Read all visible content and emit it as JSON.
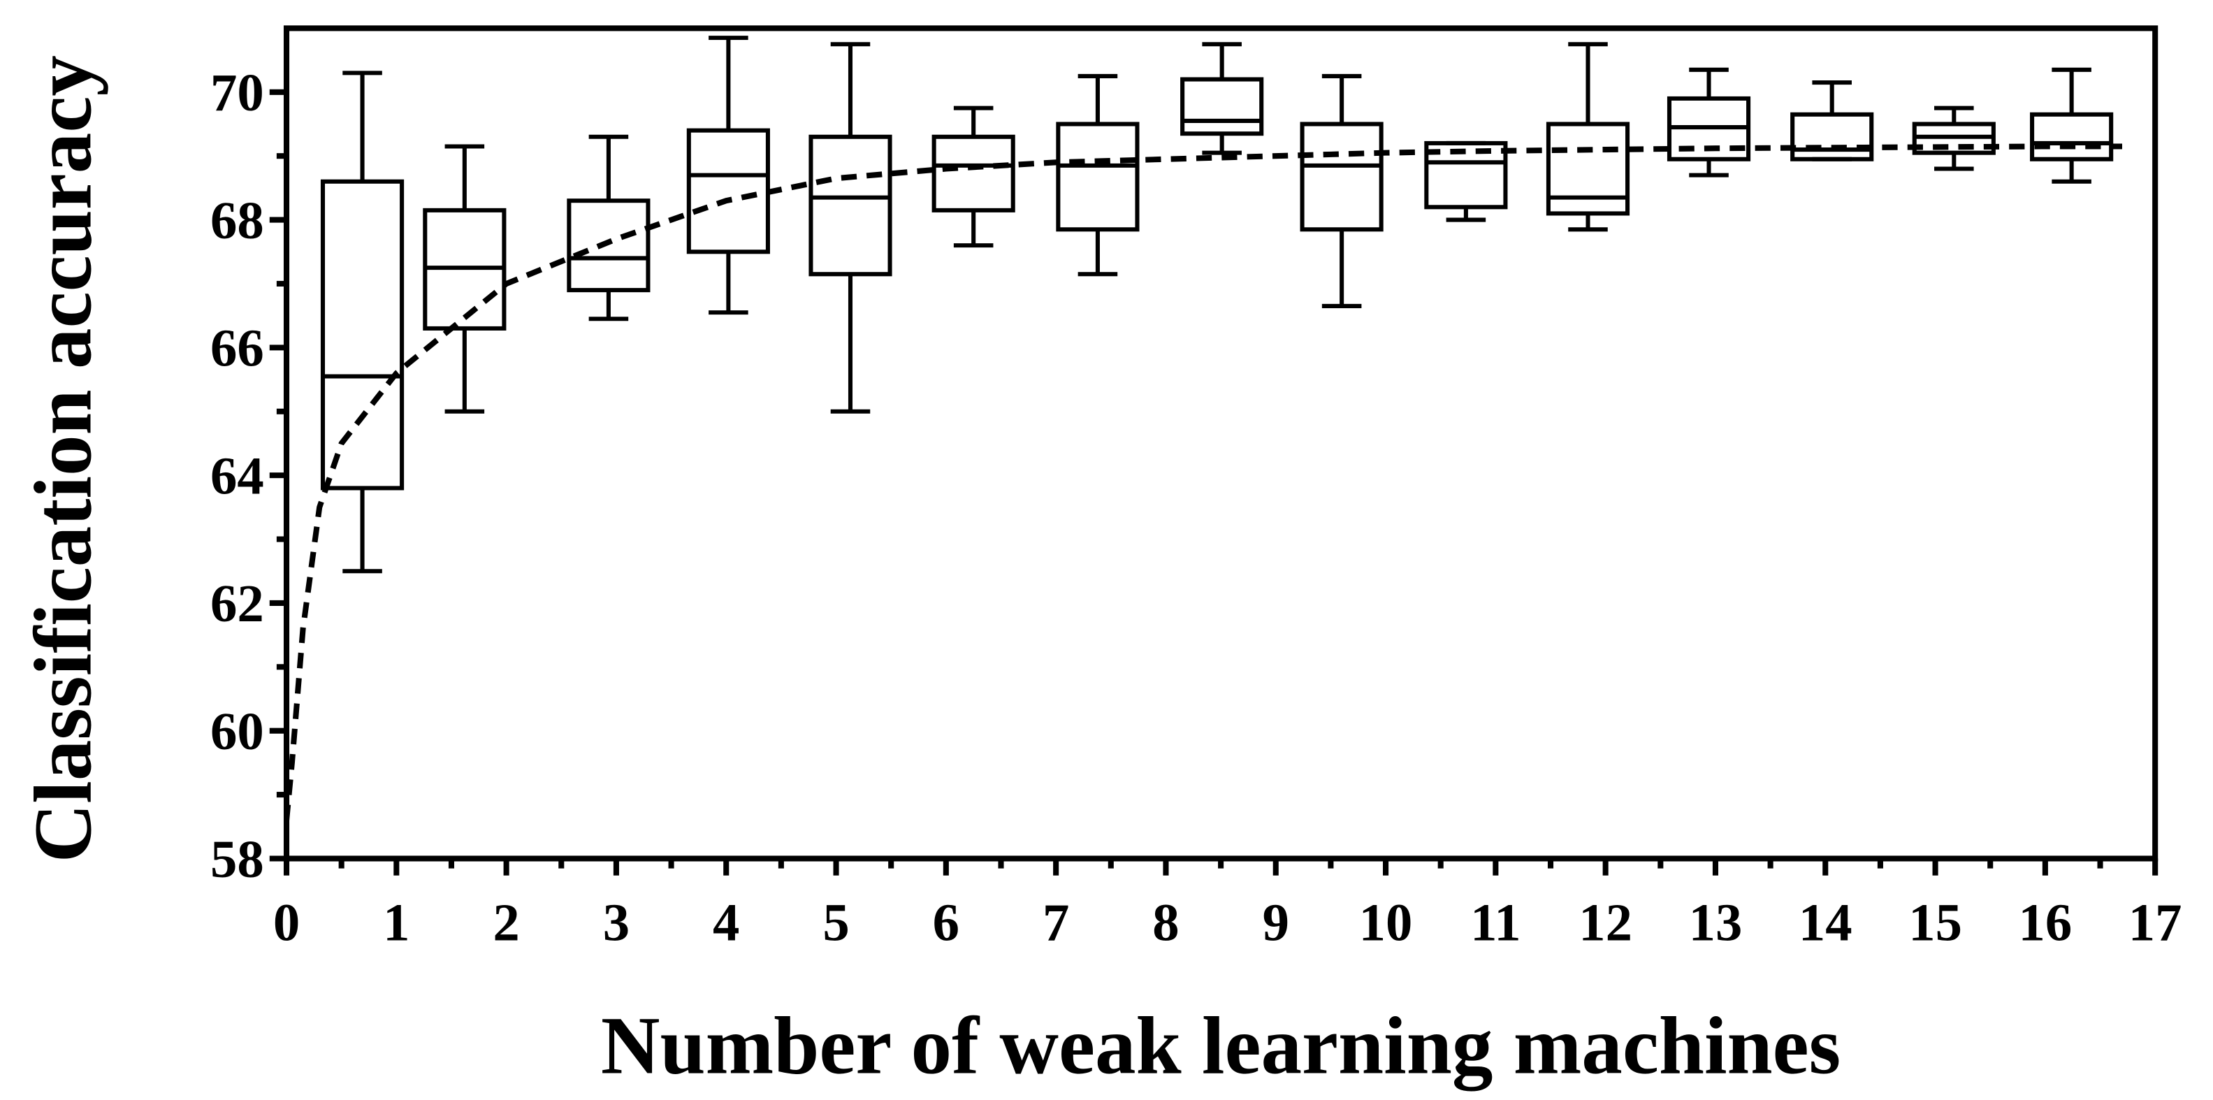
{
  "chart_data": {
    "type": "box",
    "xlabel": "Number of weak learning machines",
    "ylabel": "Classification accuracy",
    "xlim": [
      0,
      17
    ],
    "ylim": [
      58,
      71
    ],
    "xticks": [
      0,
      1,
      2,
      3,
      4,
      5,
      6,
      7,
      8,
      9,
      10,
      11,
      12,
      13,
      14,
      15,
      16,
      17
    ],
    "xminorticks": [
      0.5,
      1.5,
      2.5,
      3.5,
      4.5,
      5.5,
      6.5,
      7.5,
      8.5,
      9.5,
      10.5,
      11.5,
      12.5,
      13.5,
      14.5,
      15.5,
      16.5
    ],
    "yticks": [
      58,
      60,
      62,
      64,
      66,
      68,
      70
    ],
    "yminorticks": [
      59,
      61,
      63,
      65,
      67,
      69
    ],
    "color": "#000000",
    "boxes": [
      {
        "x": 0.69,
        "min": 62.5,
        "q1": 63.8,
        "median": 65.55,
        "q3": 68.6,
        "max": 70.3
      },
      {
        "x": 1.62,
        "min": 65.0,
        "q1": 66.3,
        "median": 67.25,
        "q3": 68.15,
        "max": 69.15
      },
      {
        "x": 2.93,
        "min": 66.45,
        "q1": 66.9,
        "median": 67.4,
        "q3": 68.3,
        "max": 69.3
      },
      {
        "x": 4.02,
        "min": 66.55,
        "q1": 67.5,
        "median": 68.7,
        "q3": 69.4,
        "max": 70.85
      },
      {
        "x": 5.13,
        "min": 65.0,
        "q1": 67.15,
        "median": 68.35,
        "q3": 69.3,
        "max": 70.75
      },
      {
        "x": 6.25,
        "min": 67.6,
        "q1": 68.15,
        "median": 68.85,
        "q3": 69.3,
        "max": 69.75
      },
      {
        "x": 7.38,
        "min": 67.15,
        "q1": 67.85,
        "median": 68.85,
        "q3": 69.5,
        "max": 70.25
      },
      {
        "x": 8.51,
        "min": 69.05,
        "q1": 69.35,
        "median": 69.55,
        "q3": 70.2,
        "max": 70.75
      },
      {
        "x": 9.6,
        "min": 66.65,
        "q1": 67.85,
        "median": 68.85,
        "q3": 69.5,
        "max": 70.25
      },
      {
        "x": 10.73,
        "min": 68.0,
        "q1": 68.2,
        "median": 68.9,
        "q3": 69.2,
        "max": 69.2
      },
      {
        "x": 11.84,
        "min": 67.85,
        "q1": 68.1,
        "median": 68.35,
        "q3": 69.5,
        "max": 70.75
      },
      {
        "x": 12.94,
        "min": 68.7,
        "q1": 68.95,
        "median": 69.45,
        "q3": 69.9,
        "max": 70.35
      },
      {
        "x": 14.06,
        "min": 68.95,
        "q1": 68.95,
        "median": 69.1,
        "q3": 69.65,
        "max": 70.15
      },
      {
        "x": 15.17,
        "min": 68.8,
        "q1": 69.05,
        "median": 69.3,
        "q3": 69.5,
        "max": 69.75
      },
      {
        "x": 16.24,
        "min": 68.6,
        "q1": 68.95,
        "median": 69.2,
        "q3": 69.65,
        "max": 70.35
      }
    ],
    "trend": {
      "x": [
        0,
        0.05,
        0.15,
        0.3,
        0.5,
        1,
        1.5,
        2,
        3,
        4,
        5,
        6,
        7,
        8,
        9,
        10,
        11,
        12,
        13,
        14,
        15,
        16,
        16.7
      ],
      "values": [
        58.6,
        59.5,
        61.6,
        63.5,
        64.5,
        65.6,
        66.3,
        67.0,
        67.7,
        68.3,
        68.65,
        68.8,
        68.9,
        68.95,
        69.0,
        69.05,
        69.08,
        69.1,
        69.12,
        69.13,
        69.14,
        69.15,
        69.15
      ]
    }
  }
}
